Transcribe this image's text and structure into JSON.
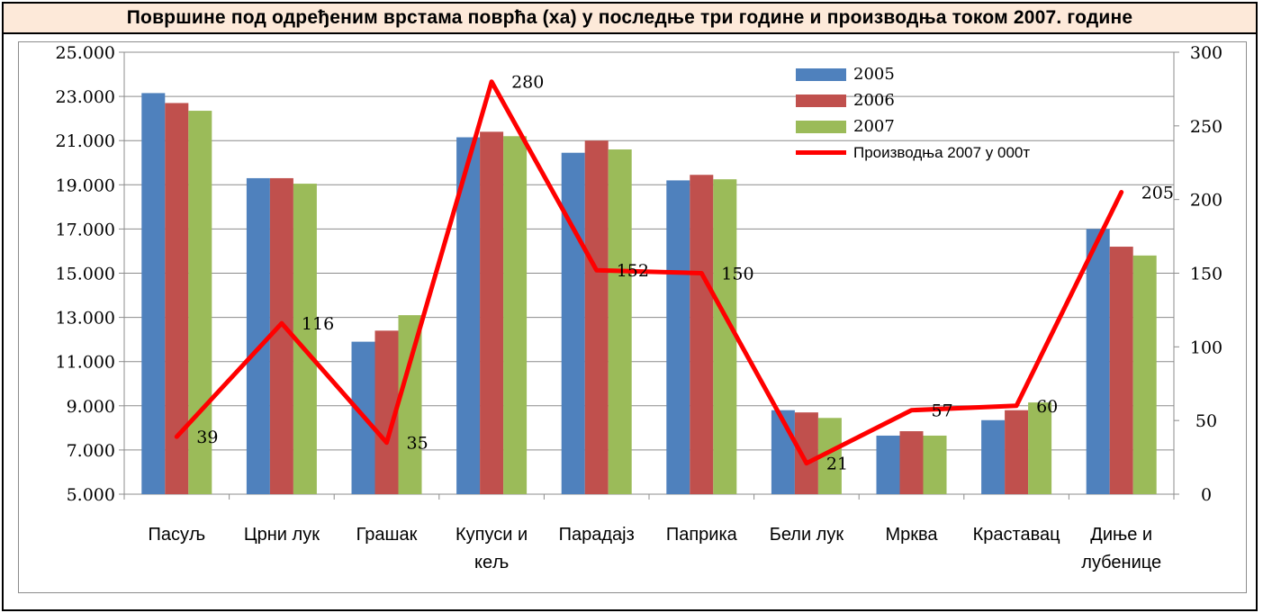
{
  "title": "Површине под одређеним врстама поврћа (ха) у последње три године и производња током 2007. године",
  "chart_data": {
    "type": "bar",
    "categories": [
      [
        "Пасуљ"
      ],
      [
        "Црни лук"
      ],
      [
        "Грашак"
      ],
      [
        "Купуси и",
        "кељ"
      ],
      [
        "Парадајз"
      ],
      [
        "Паприка"
      ],
      [
        "Бели лук"
      ],
      [
        "Мрква"
      ],
      [
        "Краставац"
      ],
      [
        "Диње и",
        "лубенице"
      ]
    ],
    "series": [
      {
        "name": "2005",
        "color": "#4f81bd",
        "values": [
          23150,
          19300,
          11900,
          21150,
          20450,
          19200,
          8800,
          7650,
          8350,
          17000
        ]
      },
      {
        "name": "2006",
        "color": "#c0504d",
        "values": [
          22700,
          19300,
          12400,
          21400,
          21000,
          19450,
          8700,
          7850,
          8800,
          16200
        ]
      },
      {
        "name": "2007",
        "color": "#9bbb59",
        "values": [
          22350,
          19050,
          13100,
          21200,
          20600,
          19250,
          8450,
          7650,
          9150,
          15800
        ]
      }
    ],
    "line_series": {
      "name": "Производња 2007 у 000т",
      "color": "#ff0000",
      "axis": "right",
      "values": [
        39,
        116,
        35,
        280,
        152,
        150,
        21,
        57,
        60,
        205
      ],
      "labels": [
        "39",
        "116",
        "35",
        "280",
        "152",
        "150",
        "21",
        "57",
        "60",
        "205"
      ]
    },
    "y_left": {
      "min": 5000,
      "max": 25000,
      "step": 2000,
      "ticks": [
        "5.000",
        "7.000",
        "9.000",
        "11.000",
        "13.000",
        "15.000",
        "17.000",
        "19.000",
        "21.000",
        "23.000",
        "25.000"
      ]
    },
    "y_right": {
      "min": 0,
      "max": 300,
      "step": 50,
      "ticks": [
        "0",
        "50",
        "100",
        "150",
        "200",
        "250",
        "300"
      ]
    },
    "grid": "horizontal",
    "legend_position": "top-right"
  }
}
